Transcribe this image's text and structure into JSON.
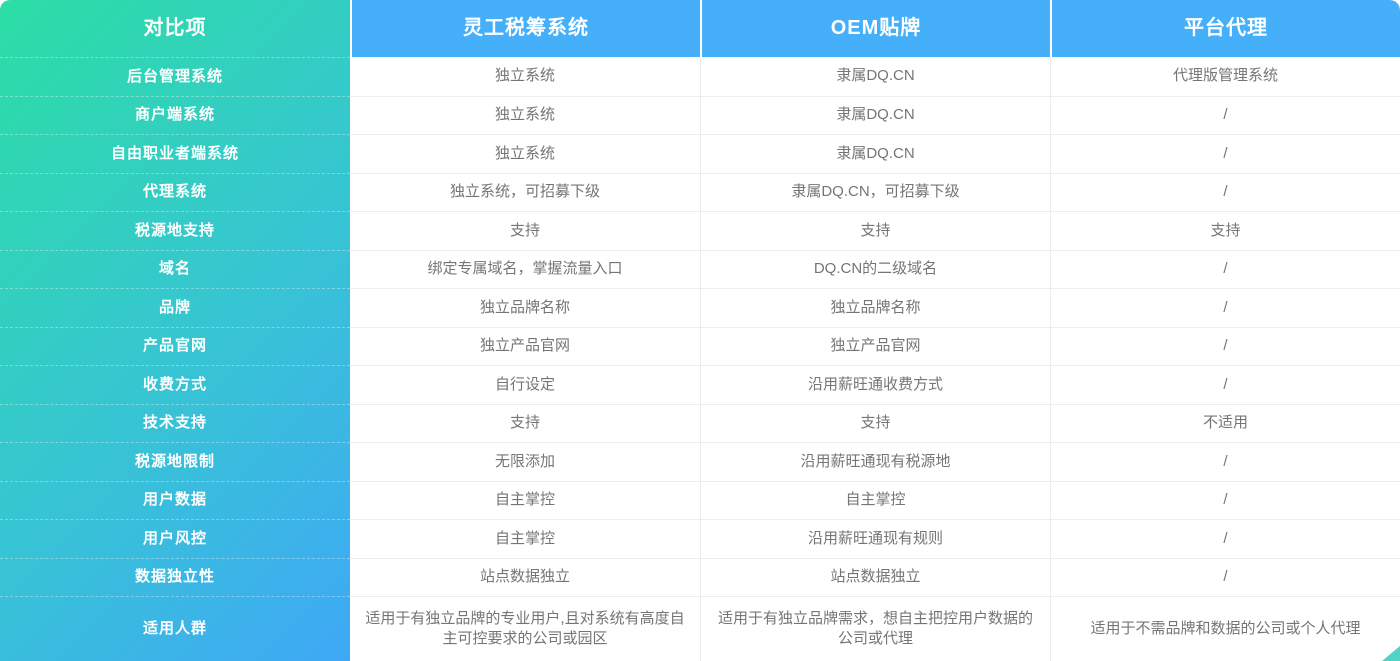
{
  "colors": {
    "header_blue": "#45affa",
    "gradient_start": "#2cdea4",
    "gradient_mid": "#37c4d4",
    "gradient_end": "#3fa8f6",
    "body_text": "#757575",
    "line": "#ececec",
    "corner_teal": "#4ed3c5"
  },
  "table": {
    "columns": [
      "对比项",
      "灵工税筹系统",
      "OEM贴牌",
      "平台代理"
    ],
    "rows": [
      {
        "label": "后台管理系统",
        "cells": [
          "独立系统",
          "隶属DQ.CN",
          "代理版管理系统"
        ]
      },
      {
        "label": "商户端系统",
        "cells": [
          "独立系统",
          "隶属DQ.CN",
          "/"
        ]
      },
      {
        "label": "自由职业者端系统",
        "cells": [
          "独立系统",
          "隶属DQ.CN",
          "/"
        ]
      },
      {
        "label": "代理系统",
        "cells": [
          "独立系统，可招募下级",
          "隶属DQ.CN，可招募下级",
          "/"
        ]
      },
      {
        "label": "税源地支持",
        "cells": [
          "支持",
          "支持",
          "支持"
        ]
      },
      {
        "label": "域名",
        "cells": [
          "绑定专属域名，掌握流量入口",
          "DQ.CN的二级域名",
          "/"
        ]
      },
      {
        "label": "品牌",
        "cells": [
          "独立品牌名称",
          "独立品牌名称",
          "/"
        ]
      },
      {
        "label": "产品官网",
        "cells": [
          "独立产品官网",
          "独立产品官网",
          "/"
        ]
      },
      {
        "label": "收费方式",
        "cells": [
          "自行设定",
          "沿用薪旺通收费方式",
          "/"
        ]
      },
      {
        "label": "技术支持",
        "cells": [
          "支持",
          "支持",
          "不适用"
        ]
      },
      {
        "label": "税源地限制",
        "cells": [
          "无限添加",
          "沿用薪旺通现有税源地",
          "/"
        ]
      },
      {
        "label": "用户数据",
        "cells": [
          "自主掌控",
          "自主掌控",
          "/"
        ]
      },
      {
        "label": "用户风控",
        "cells": [
          "自主掌控",
          "沿用薪旺通现有规则",
          "/"
        ]
      },
      {
        "label": "数据独立性",
        "cells": [
          "站点数据独立",
          "站点数据独立",
          "/"
        ]
      },
      {
        "label": "适用人群",
        "cells": [
          "适用于有独立品牌的专业用户,且对系统有高度自主可控要求的公司或园区",
          "适用于有独立品牌需求，想自主把控用户数据的公司或代理",
          "适用于不需品牌和数据的公司或个人代理"
        ],
        "tall": true
      }
    ]
  }
}
